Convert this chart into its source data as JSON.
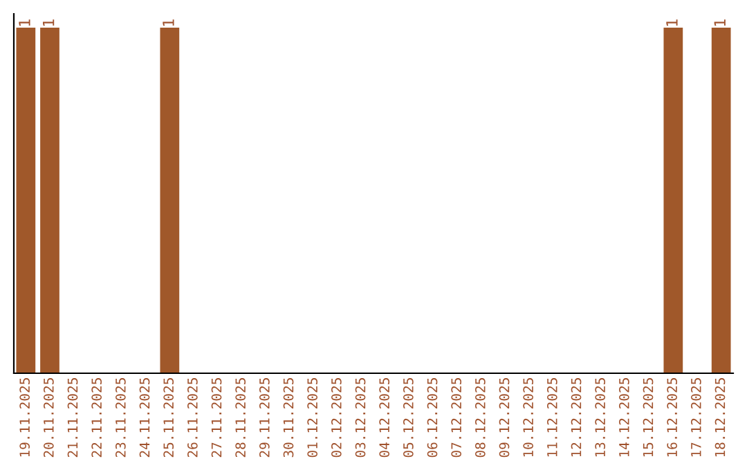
{
  "chart_data": {
    "type": "bar",
    "categories": [
      "19.11.2025",
      "20.11.2025",
      "21.11.2025",
      "22.11.2025",
      "23.11.2025",
      "24.11.2025",
      "25.11.2025",
      "26.11.2025",
      "27.11.2025",
      "28.11.2025",
      "29.11.2025",
      "30.11.2025",
      "01.12.2025",
      "02.12.2025",
      "03.12.2025",
      "04.12.2025",
      "05.12.2025",
      "06.12.2025",
      "07.12.2025",
      "08.12.2025",
      "09.12.2025",
      "10.12.2025",
      "11.12.2025",
      "12.12.2025",
      "13.12.2025",
      "14.12.2025",
      "15.12.2025",
      "16.12.2025",
      "17.12.2025",
      "18.12.2025"
    ],
    "values": [
      1,
      1,
      0,
      0,
      0,
      0,
      1,
      0,
      0,
      0,
      0,
      0,
      0,
      0,
      0,
      0,
      0,
      0,
      0,
      0,
      0,
      0,
      0,
      0,
      0,
      0,
      0,
      1,
      0,
      1
    ],
    "value_labels": [
      "1",
      "1",
      null,
      null,
      null,
      null,
      "1",
      null,
      null,
      null,
      null,
      null,
      null,
      null,
      null,
      null,
      null,
      null,
      null,
      null,
      null,
      null,
      null,
      null,
      null,
      null,
      null,
      "1",
      null,
      "1"
    ],
    "color": "#a0582a",
    "tick_labels": "x"
  }
}
